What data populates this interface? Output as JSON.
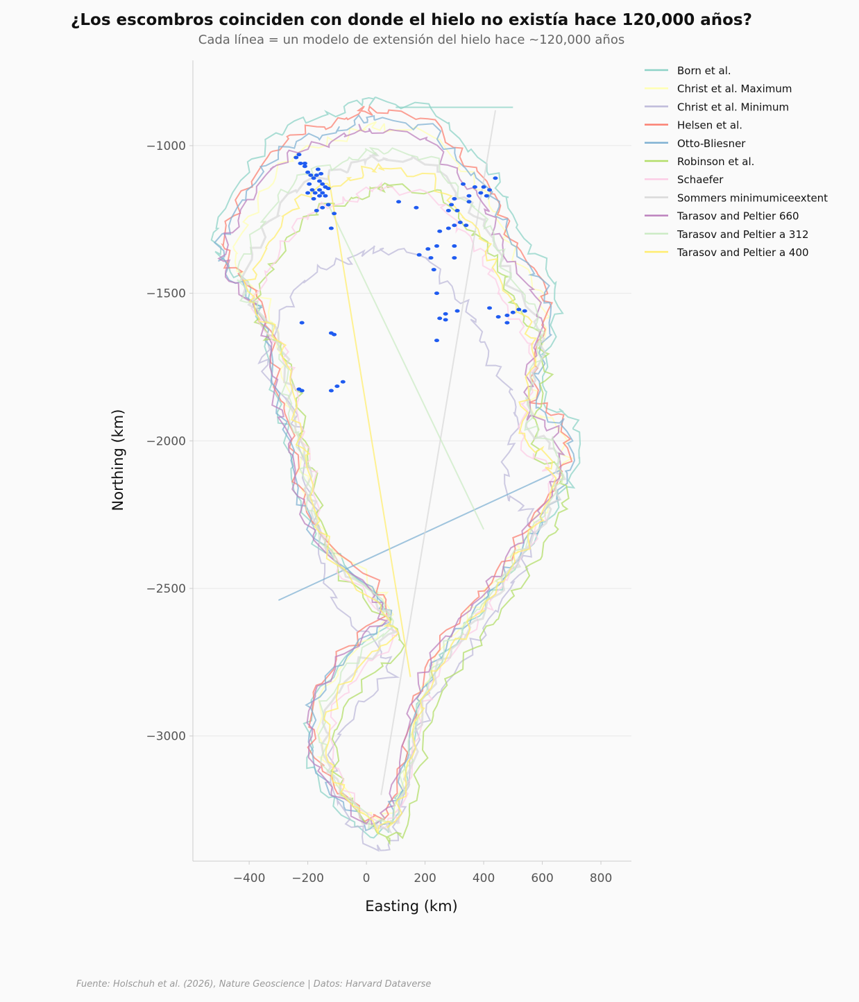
{
  "chart_data": {
    "type": "line",
    "title": "¿Los escombros coinciden con donde el hielo no existía hace 120,000 años?",
    "subtitle": "Cada línea = un modelo de extensión del hielo hace ~120,000 años",
    "xlabel": "Easting (km)",
    "ylabel": "Northing (km)",
    "xlim": [
      -592,
      904
    ],
    "ylim": [
      -3424,
      -711
    ],
    "xticks": [
      -400,
      -200,
      0,
      200,
      400,
      600,
      800
    ],
    "xtick_labels": [
      "−400",
      "−200",
      "0",
      "200",
      "400",
      "600",
      "800"
    ],
    "yticks": [
      -1000,
      -1500,
      -2000,
      -2500,
      -3000
    ],
    "ytick_labels": [
      "−1000",
      "−1500",
      "−2000",
      "−2500",
      "−3000"
    ],
    "grid": "horizontal",
    "legend_position": "outside-top-right",
    "base_outline": [
      [
        28,
        -882
      ],
      [
        218,
        -906
      ],
      [
        312,
        -1024
      ],
      [
        407,
        -1118
      ],
      [
        454,
        -1212
      ],
      [
        502,
        -1329
      ],
      [
        596,
        -1447
      ],
      [
        620,
        -1565
      ],
      [
        573,
        -1729
      ],
      [
        573,
        -1871
      ],
      [
        667,
        -1918
      ],
      [
        691,
        -2035
      ],
      [
        644,
        -2153
      ],
      [
        549,
        -2294
      ],
      [
        454,
        -2435
      ],
      [
        360,
        -2553
      ],
      [
        241,
        -2694
      ],
      [
        170,
        -2859
      ],
      [
        123,
        -3094
      ],
      [
        76,
        -3259
      ],
      [
        5,
        -3282
      ],
      [
        -114,
        -3165
      ],
      [
        -185,
        -3047
      ],
      [
        -185,
        -2859
      ],
      [
        -66,
        -2694
      ],
      [
        76,
        -2576
      ],
      [
        28,
        -2482
      ],
      [
        -161,
        -2318
      ],
      [
        -232,
        -2153
      ],
      [
        -256,
        -1965
      ],
      [
        -303,
        -1824
      ],
      [
        -327,
        -1635
      ],
      [
        -374,
        -1494
      ],
      [
        -469,
        -1400
      ],
      [
        -492,
        -1306
      ],
      [
        -421,
        -1165
      ],
      [
        -327,
        -1024
      ],
      [
        -232,
        -953
      ],
      [
        -114,
        -929
      ],
      [
        -19,
        -882
      ]
    ],
    "series": [
      {
        "name": "Born et al.",
        "color": "#8dd3c7",
        "scale": [
          1.06,
          1.04
        ],
        "shift": [
          0,
          -10
        ],
        "extra": [
          [
            100,
            -870
          ],
          [
            500,
            -870
          ]
        ]
      },
      {
        "name": "Christ et al. Maximum",
        "color": "#ffffb3",
        "scale": [
          0.96,
          0.98
        ],
        "shift": [
          20,
          -30
        ],
        "extra": []
      },
      {
        "name": "Christ et al. Minimum",
        "color": "#bebada",
        "scale": [
          0.78,
          0.85
        ],
        "shift": [
          30,
          -300
        ],
        "extra": []
      },
      {
        "name": "Helsen et al.",
        "color": "#fb8072",
        "scale": [
          1.0,
          1.0
        ],
        "shift": [
          0,
          0
        ],
        "extra": []
      },
      {
        "name": "Otto-Bliesner",
        "color": "#80b1d3",
        "scale": [
          1.02,
          1.0
        ],
        "shift": [
          0,
          -30
        ],
        "extra": [
          [
            -300,
            -2540
          ],
          [
            660,
            -2100
          ]
        ]
      },
      {
        "name": "Robinson et al.",
        "color": "#b3de69",
        "scale": [
          0.9,
          0.92
        ],
        "shift": [
          60,
          -170
        ],
        "extra": []
      },
      {
        "name": "Schaefer",
        "color": "#fccde5",
        "scale": [
          0.86,
          0.9
        ],
        "shift": [
          40,
          -150
        ],
        "extra": []
      },
      {
        "name": "Sommers minimumiceextent",
        "color": "#d9d9d9",
        "scale": [
          0.92,
          0.95
        ],
        "shift": [
          30,
          -100
        ],
        "extra": [
          [
            440,
            -880
          ],
          [
            50,
            -3200
          ]
        ]
      },
      {
        "name": "Tarasov and Peltier 660",
        "color": "#bc80bd",
        "scale": [
          0.98,
          0.98
        ],
        "shift": [
          -10,
          -40
        ],
        "extra": []
      },
      {
        "name": "Tarasov and Peltier a 312",
        "color": "#ccebc5",
        "scale": [
          0.93,
          0.95
        ],
        "shift": [
          20,
          -80
        ],
        "extra": [
          [
            -130,
            -1200
          ],
          [
            400,
            -2300
          ]
        ]
      },
      {
        "name": "Tarasov and Peltier a 400",
        "color": "#ffed6f",
        "scale": [
          0.88,
          0.93
        ],
        "shift": [
          30,
          -120
        ],
        "extra": [
          [
            -130,
            -1100
          ],
          [
            150,
            -2800
          ]
        ]
      }
    ],
    "debris": {
      "color": "#1f5bf0",
      "points": [
        [
          -240,
          -1040
        ],
        [
          -225,
          -1060
        ],
        [
          -210,
          -1070
        ],
        [
          -200,
          -1090
        ],
        [
          -190,
          -1100
        ],
        [
          -180,
          -1110
        ],
        [
          -170,
          -1100
        ],
        [
          -160,
          -1120
        ],
        [
          -150,
          -1130
        ],
        [
          -140,
          -1140
        ],
        [
          -130,
          -1145
        ],
        [
          -195,
          -1130
        ],
        [
          -185,
          -1150
        ],
        [
          -175,
          -1160
        ],
        [
          -160,
          -1150
        ],
        [
          -150,
          -1160
        ],
        [
          -200,
          -1160
        ],
        [
          -180,
          -1180
        ],
        [
          -160,
          -1170
        ],
        [
          -140,
          -1170
        ],
        [
          -170,
          -1220
        ],
        [
          -150,
          -1210
        ],
        [
          -130,
          -1200
        ],
        [
          -110,
          -1230
        ],
        [
          -120,
          -1280
        ],
        [
          -210,
          -1060
        ],
        [
          -230,
          -1030
        ],
        [
          -165,
          -1080
        ],
        [
          -155,
          -1095
        ],
        [
          400,
          -1140
        ],
        [
          420,
          -1150
        ],
        [
          390,
          -1160
        ],
        [
          410,
          -1170
        ],
        [
          440,
          -1110
        ],
        [
          370,
          -1140
        ],
        [
          330,
          -1130
        ],
        [
          350,
          -1170
        ],
        [
          300,
          -1180
        ],
        [
          290,
          -1200
        ],
        [
          310,
          -1220
        ],
        [
          280,
          -1220
        ],
        [
          350,
          -1190
        ],
        [
          320,
          -1260
        ],
        [
          300,
          -1270
        ],
        [
          280,
          -1280
        ],
        [
          340,
          -1270
        ],
        [
          250,
          -1290
        ],
        [
          240,
          -1340
        ],
        [
          210,
          -1350
        ],
        [
          220,
          -1380
        ],
        [
          180,
          -1370
        ],
        [
          300,
          -1340
        ],
        [
          300,
          -1380
        ],
        [
          230,
          -1420
        ],
        [
          170,
          -1210
        ],
        [
          110,
          -1190
        ],
        [
          240,
          -1500
        ],
        [
          270,
          -1570
        ],
        [
          310,
          -1560
        ],
        [
          270,
          -1590
        ],
        [
          250,
          -1585
        ],
        [
          240,
          -1660
        ],
        [
          420,
          -1550
        ],
        [
          450,
          -1580
        ],
        [
          480,
          -1575
        ],
        [
          500,
          -1565
        ],
        [
          520,
          -1555
        ],
        [
          540,
          -1560
        ],
        [
          480,
          -1600
        ],
        [
          -220,
          -1600
        ],
        [
          -110,
          -1640
        ],
        [
          -120,
          -1635
        ],
        [
          -220,
          -1830
        ],
        [
          -230,
          -1825
        ],
        [
          -80,
          -1800
        ],
        [
          -100,
          -1815
        ],
        [
          -120,
          -1830
        ]
      ]
    }
  },
  "footer": "Fuente: Holschuh et al. (2026), Nature Geoscience | Datos: Harvard Dataverse"
}
